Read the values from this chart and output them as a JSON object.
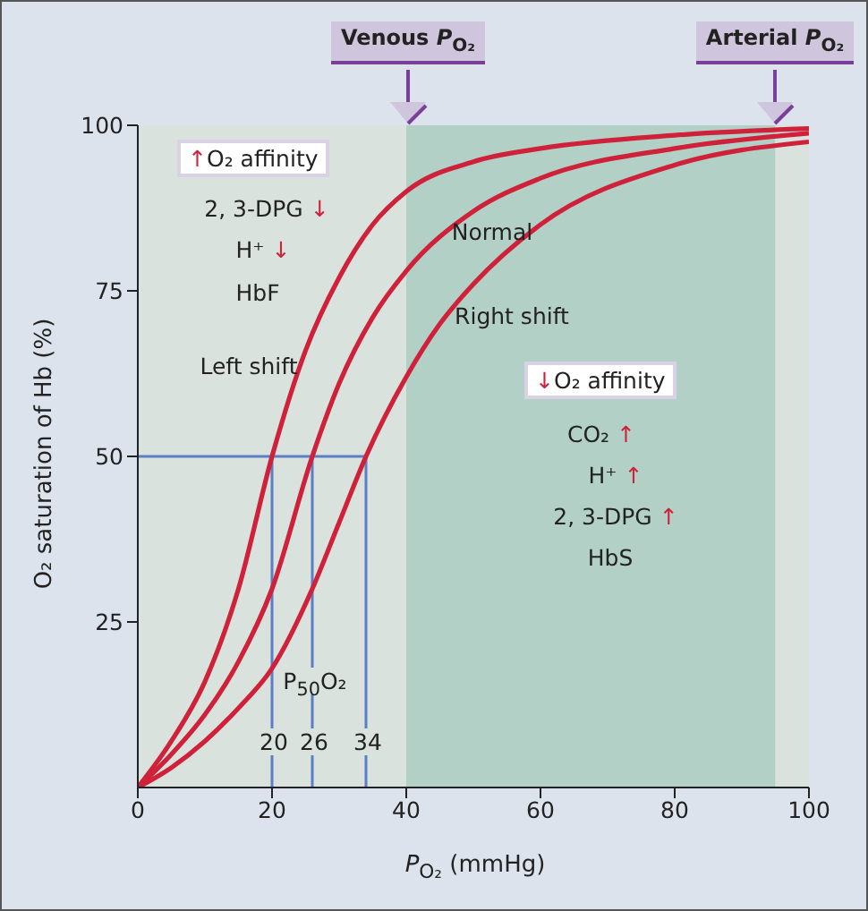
{
  "chart_data": {
    "type": "line",
    "xlabel": "P$_{O₂}$ (mmHg)",
    "ylabel": "O₂ saturation of Hb (%)",
    "xlim": [
      0,
      100
    ],
    "xticks": [
      0,
      20,
      40,
      60,
      80,
      100
    ],
    "ylim": [
      0,
      100
    ],
    "yticks": [
      25,
      50,
      75,
      100
    ],
    "marker": "none",
    "line_style": "solid",
    "series": [
      {
        "color": "#d0213a",
        "x": [
          0,
          5,
          10,
          15,
          20,
          25,
          30,
          35,
          40,
          50,
          60,
          80,
          100
        ],
        "values": [
          0,
          7,
          16,
          30,
          50,
          66,
          77,
          85,
          90,
          94.5,
          96.5,
          98.5,
          99.5
        ]
      },
      {
        "color": "#d0213a",
        "x": [
          0,
          5,
          10,
          15,
          20,
          26,
          30,
          35,
          40,
          50,
          60,
          80,
          100
        ],
        "values": [
          0,
          5,
          11,
          19,
          30,
          50,
          61,
          71,
          78,
          87,
          92,
          96.5,
          98.8
        ]
      },
      {
        "color": "#d0213a",
        "x": [
          0,
          5,
          10,
          15,
          20,
          26,
          30,
          34,
          40,
          45,
          50,
          60,
          80,
          100
        ],
        "values": [
          0,
          3,
          7,
          12,
          18,
          30,
          40,
          50,
          62,
          70,
          76,
          85,
          94,
          97.5
        ]
      }
    ],
    "bands": [
      {
        "axis": "x",
        "from": 0,
        "to": 40,
        "color": "#dae2de"
      },
      {
        "axis": "x",
        "from": 40,
        "to": 95,
        "color": "#b3d0c6"
      },
      {
        "axis": "x",
        "from": 95,
        "to": 100,
        "color": "#dae2de"
      }
    ],
    "ref_lines": [
      {
        "axis": "y",
        "value": 50,
        "color": "#5b7fc7"
      },
      {
        "axis": "x",
        "value": 20,
        "label": "20",
        "color": "#5b7fc7"
      },
      {
        "axis": "x",
        "value": 26,
        "label": "26",
        "color": "#5b7fc7"
      },
      {
        "axis": "x",
        "value": 34,
        "label": "34",
        "color": "#5b7fc7"
      }
    ],
    "annotations": [
      "Venous P$_{O₂}$",
      "Arterial P$_{O₂}$",
      "Left shift",
      "Normal",
      "Right shift",
      "↑O₂ affinity",
      "2, 3-DPG ↓",
      "H⁺ ↓",
      "HbF",
      "↓O₂ affinity",
      "CO₂ ↑",
      "H⁺ ↑",
      "2, 3-DPG ↑",
      "HbS",
      "P$_{50}$O₂"
    ]
  }
}
